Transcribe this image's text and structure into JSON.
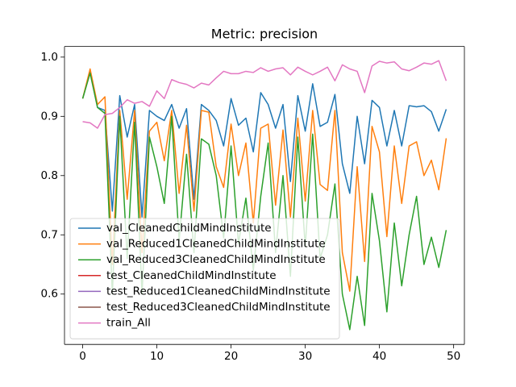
{
  "chart_data": {
    "type": "line",
    "title": "Metric: precision",
    "x": [
      0,
      1,
      2,
      3,
      4,
      5,
      6,
      7,
      8,
      9,
      10,
      11,
      12,
      13,
      14,
      15,
      16,
      17,
      18,
      19,
      20,
      21,
      22,
      23,
      24,
      25,
      26,
      27,
      28,
      29,
      30,
      31,
      32,
      33,
      34,
      35,
      36,
      37,
      38,
      39,
      40,
      41,
      42,
      43,
      44,
      45,
      46,
      47,
      48,
      49
    ],
    "series": [
      {
        "name": "val_CleanedChildMindInstitute",
        "color": "#1f77b4",
        "values": [
          0.93,
          0.975,
          0.915,
          0.91,
          0.74,
          0.935,
          0.865,
          0.92,
          0.73,
          0.91,
          0.9,
          0.893,
          0.92,
          0.88,
          0.913,
          0.76,
          0.92,
          0.91,
          0.893,
          0.85,
          0.93,
          0.885,
          0.897,
          0.84,
          0.94,
          0.92,
          0.88,
          0.92,
          0.79,
          0.935,
          0.875,
          0.955,
          0.883,
          0.89,
          0.937,
          0.82,
          0.77,
          0.9,
          0.82,
          0.927,
          0.915,
          0.85,
          0.91,
          0.85,
          0.918,
          0.916,
          0.918,
          0.908,
          0.875,
          0.912
        ]
      },
      {
        "name": "val_Reduced1CleanedChildMindInstitute",
        "color": "#ff7f0e",
        "values": [
          0.93,
          0.98,
          0.92,
          0.933,
          0.65,
          0.91,
          0.76,
          0.91,
          0.67,
          0.875,
          0.89,
          0.825,
          0.91,
          0.77,
          0.885,
          0.74,
          0.91,
          0.907,
          0.815,
          0.78,
          0.887,
          0.8,
          0.855,
          0.72,
          0.88,
          0.887,
          0.75,
          0.877,
          0.73,
          0.897,
          0.757,
          0.91,
          0.785,
          0.775,
          0.91,
          0.67,
          0.605,
          0.815,
          0.655,
          0.883,
          0.84,
          0.697,
          0.85,
          0.753,
          0.85,
          0.857,
          0.8,
          0.826,
          0.776,
          0.863
        ]
      },
      {
        "name": "val_Reduced3CleanedChildMindInstitute",
        "color": "#2ca02c",
        "values": [
          0.93,
          0.973,
          0.915,
          0.905,
          0.6,
          0.9,
          0.66,
          0.89,
          0.6,
          0.865,
          0.815,
          0.753,
          0.9,
          0.69,
          0.836,
          0.67,
          0.862,
          0.853,
          0.8,
          0.695,
          0.85,
          0.685,
          0.762,
          0.64,
          0.765,
          0.855,
          0.67,
          0.8,
          0.63,
          0.865,
          0.68,
          0.87,
          0.66,
          0.7,
          0.786,
          0.6,
          0.54,
          0.63,
          0.547,
          0.77,
          0.69,
          0.57,
          0.72,
          0.614,
          0.7,
          0.765,
          0.65,
          0.696,
          0.645,
          0.708
        ]
      },
      {
        "name": "test_CleanedChildMindInstitute",
        "color": "#d62728",
        "values": [
          null,
          null,
          null,
          null,
          null,
          null,
          null,
          null,
          null,
          null,
          null,
          null,
          null,
          null,
          null,
          null,
          null,
          null,
          null,
          null,
          null,
          null,
          null,
          null,
          null,
          null,
          null,
          null,
          null,
          null,
          null,
          null,
          null,
          null,
          null,
          null,
          null,
          null,
          null,
          null,
          null,
          null,
          null,
          null,
          null,
          null,
          null,
          null,
          null,
          null
        ]
      },
      {
        "name": "test_Reduced1CleanedChildMindInstitute",
        "color": "#9467bd",
        "values": [
          null,
          null,
          null,
          null,
          null,
          null,
          null,
          null,
          null,
          null,
          null,
          null,
          null,
          null,
          null,
          null,
          null,
          null,
          null,
          null,
          null,
          null,
          null,
          null,
          null,
          null,
          null,
          null,
          null,
          null,
          null,
          null,
          null,
          null,
          null,
          null,
          null,
          null,
          null,
          null,
          null,
          null,
          null,
          null,
          null,
          null,
          null,
          null,
          null,
          null
        ]
      },
      {
        "name": "test_Reduced3CleanedChildMindInstitute",
        "color": "#8c564b",
        "values": [
          null,
          null,
          null,
          null,
          null,
          null,
          null,
          null,
          null,
          null,
          null,
          null,
          null,
          null,
          null,
          null,
          null,
          null,
          null,
          null,
          null,
          null,
          null,
          null,
          null,
          null,
          null,
          null,
          null,
          null,
          null,
          null,
          null,
          null,
          null,
          null,
          null,
          null,
          null,
          null,
          null,
          null,
          null,
          null,
          null,
          null,
          null,
          null,
          null,
          null
        ]
      },
      {
        "name": "train_All",
        "color": "#e377c2",
        "values": [
          0.891,
          0.889,
          0.88,
          0.903,
          0.905,
          0.915,
          0.928,
          0.922,
          0.925,
          0.917,
          0.943,
          0.93,
          0.962,
          0.957,
          0.954,
          0.948,
          0.956,
          0.953,
          0.965,
          0.976,
          0.972,
          0.972,
          0.976,
          0.974,
          0.982,
          0.976,
          0.98,
          0.982,
          0.97,
          0.983,
          0.976,
          0.97,
          0.976,
          0.983,
          0.96,
          0.987,
          0.98,
          0.976,
          0.94,
          0.985,
          0.993,
          0.99,
          0.992,
          0.98,
          0.977,
          0.983,
          0.99,
          0.988,
          0.994,
          0.96
        ]
      }
    ],
    "xlim": [
      -2.45,
      51.45
    ],
    "xticks": [
      0,
      10,
      20,
      30,
      40,
      50
    ],
    "ylim": [
      0.515,
      1.018
    ],
    "yticks": [
      0.6,
      0.7,
      0.8,
      0.9,
      {
        "value": 1,
        "label": "1.0"
      }
    ],
    "legend": "lower left"
  }
}
